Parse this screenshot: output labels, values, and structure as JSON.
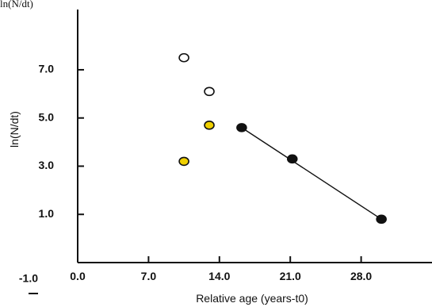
{
  "header_text": "ln(N/dt)",
  "chart_data": {
    "type": "scatter",
    "title": "",
    "xlabel": "Relative age (years-t0)",
    "ylabel": "ln(N/dt)",
    "xlim": [
      0,
      35
    ],
    "ylim": [
      -1,
      9.5
    ],
    "x_ticks": [
      0,
      7,
      14,
      21,
      28
    ],
    "x_tick_labels": [
      "0.0",
      "7.0",
      "14.0",
      "21.0",
      "28.0"
    ],
    "y_ticks": [
      -1,
      1,
      3,
      5,
      7
    ],
    "y_tick_labels": [
      "-1.0",
      "1.0",
      "3.0",
      "5.0",
      "7.0"
    ],
    "grid": false,
    "legend": false,
    "series": [
      {
        "marker": "open-circle",
        "color": "#ffffff",
        "stroke": "#111111",
        "points": [
          {
            "x": 10.5,
            "y": 7.5
          },
          {
            "x": 13.0,
            "y": 6.1
          }
        ]
      },
      {
        "marker": "filled-circle",
        "color": "#f0d000",
        "stroke": "#111111",
        "points": [
          {
            "x": 10.5,
            "y": 3.2
          },
          {
            "x": 13.0,
            "y": 4.7
          }
        ]
      },
      {
        "marker": "filled-circle",
        "color": "#111111",
        "stroke": "#111111",
        "points": [
          {
            "x": 16.2,
            "y": 4.6
          },
          {
            "x": 21.2,
            "y": 3.3
          },
          {
            "x": 30.0,
            "y": 0.8
          }
        ],
        "fit_line": {
          "x": [
            16.2,
            30.0
          ],
          "y": [
            4.6,
            0.8
          ]
        }
      }
    ]
  }
}
